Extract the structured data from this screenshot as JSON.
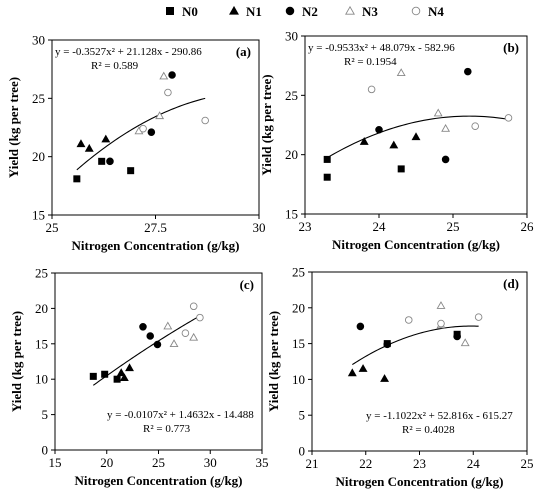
{
  "legend": [
    {
      "label": "N0",
      "marker": "square"
    },
    {
      "label": "N1",
      "marker": "triangle"
    },
    {
      "label": "N2",
      "marker": "circle"
    },
    {
      "label": "N3",
      "marker": "triangle-open"
    },
    {
      "label": "N4",
      "marker": "circle-open"
    }
  ],
  "chart_data": [
    {
      "type": "scatter",
      "panel_label": "(a)",
      "xlabel": "Nitrogen Concentration (g/kg)",
      "ylabel": "Yield (kg per tree)",
      "xlim": [
        25,
        30
      ],
      "ylim": [
        15,
        30
      ],
      "xticks": [
        "25",
        "27.5",
        "30"
      ],
      "xtick_values": [
        25,
        27.5,
        30
      ],
      "yticks": [
        "15",
        "20",
        "25",
        "30"
      ],
      "ytick_values": [
        15,
        20,
        25,
        30
      ],
      "equation": "y = -0.3527x² + 21.128x - 290.86",
      "r2": "R² = 0.589",
      "equation_position": "top-left",
      "fit": {
        "a": -0.3527,
        "b": 21.128,
        "c": -290.86,
        "x_range": [
          25.6,
          28.7
        ]
      },
      "series": [
        {
          "name": "N0",
          "points": [
            [
              25.6,
              18.1
            ],
            [
              26.2,
              19.6
            ],
            [
              26.9,
              18.8
            ]
          ]
        },
        {
          "name": "N1",
          "points": [
            [
              25.7,
              21.1
            ],
            [
              25.9,
              20.7
            ],
            [
              26.3,
              21.5
            ]
          ]
        },
        {
          "name": "N2",
          "points": [
            [
              26.4,
              19.6
            ],
            [
              27.4,
              22.1
            ],
            [
              27.9,
              27.0
            ]
          ]
        },
        {
          "name": "N3",
          "points": [
            [
              27.1,
              22.2
            ],
            [
              27.6,
              23.5
            ],
            [
              27.7,
              26.9
            ]
          ]
        },
        {
          "name": "N4",
          "points": [
            [
              27.2,
              22.4
            ],
            [
              27.8,
              25.5
            ],
            [
              28.7,
              23.1
            ]
          ]
        }
      ]
    },
    {
      "type": "scatter",
      "panel_label": "(b)",
      "xlabel": "Nitrogen Concentration (g/kg)",
      "ylabel": "Yield (kg per tree)",
      "xlim": [
        23,
        26
      ],
      "ylim": [
        15,
        30
      ],
      "xticks": [
        "23",
        "24",
        "25",
        "26"
      ],
      "xtick_values": [
        23,
        24,
        25,
        26
      ],
      "yticks": [
        "15",
        "20",
        "25",
        "30"
      ],
      "ytick_values": [
        15,
        20,
        25,
        30
      ],
      "equation": "y = -0.9533x² + 48.079x - 582.96",
      "r2": "R² = 0.1954",
      "equation_position": "top-left",
      "fit": {
        "a": -0.9533,
        "b": 48.079,
        "c": -582.96,
        "x_range": [
          23.3,
          25.75
        ]
      },
      "series": [
        {
          "name": "N0",
          "points": [
            [
              23.3,
              19.6
            ],
            [
              23.3,
              18.1
            ],
            [
              24.3,
              18.8
            ]
          ]
        },
        {
          "name": "N1",
          "points": [
            [
              23.8,
              21.1
            ],
            [
              24.2,
              20.8
            ],
            [
              24.5,
              21.5
            ]
          ]
        },
        {
          "name": "N2",
          "points": [
            [
              24.0,
              22.1
            ],
            [
              24.9,
              19.6
            ],
            [
              25.2,
              27.0
            ]
          ]
        },
        {
          "name": "N3",
          "points": [
            [
              24.3,
              26.9
            ],
            [
              24.8,
              23.5
            ],
            [
              24.9,
              22.2
            ]
          ]
        },
        {
          "name": "N4",
          "points": [
            [
              23.9,
              25.5
            ],
            [
              25.3,
              22.4
            ],
            [
              25.75,
              23.1
            ]
          ]
        }
      ]
    },
    {
      "type": "scatter",
      "panel_label": "(c)",
      "xlabel": "Nitrogen Concentration (g/kg)",
      "ylabel": "Yield (kg per tree)",
      "xlim": [
        15,
        35
      ],
      "ylim": [
        0,
        25
      ],
      "xticks": [
        "15",
        "20",
        "25",
        "30",
        "35"
      ],
      "xtick_values": [
        15,
        20,
        25,
        30,
        35
      ],
      "yticks": [
        "0",
        "5",
        "10",
        "15",
        "20",
        "25"
      ],
      "ytick_values": [
        0,
        5,
        10,
        15,
        20,
        25
      ],
      "equation": "y = -0.0107x² + 1.4632x - 14.488",
      "r2": "R² = 0.773",
      "equation_position": "bottom-right",
      "fit": {
        "a": -0.0107,
        "b": 1.4632,
        "c": -14.488,
        "x_range": [
          18.7,
          29.0
        ]
      },
      "series": [
        {
          "name": "N0",
          "points": [
            [
              18.7,
              10.4
            ],
            [
              19.8,
              10.7
            ],
            [
              21.0,
              10.0
            ]
          ]
        },
        {
          "name": "N1",
          "points": [
            [
              21.4,
              10.9
            ],
            [
              21.7,
              10.2
            ],
            [
              22.2,
              11.6
            ]
          ]
        },
        {
          "name": "N2",
          "points": [
            [
              23.5,
              17.4
            ],
            [
              24.2,
              16.1
            ],
            [
              24.9,
              14.9
            ]
          ]
        },
        {
          "name": "N3",
          "points": [
            [
              25.9,
              17.5
            ],
            [
              26.5,
              15.0
            ],
            [
              28.4,
              15.9
            ]
          ]
        },
        {
          "name": "N4",
          "points": [
            [
              27.6,
              16.5
            ],
            [
              28.4,
              20.3
            ],
            [
              29.0,
              18.7
            ]
          ]
        }
      ]
    },
    {
      "type": "scatter",
      "panel_label": "(d)",
      "xlabel": "Nitrogen Concentration (g/kg)",
      "ylabel": "Yield (kg per tree)",
      "xlim": [
        21,
        25
      ],
      "ylim": [
        0,
        25
      ],
      "xticks": [
        "21",
        "22",
        "23",
        "24",
        "25"
      ],
      "xtick_values": [
        21,
        22,
        23,
        24,
        25
      ],
      "yticks": [
        "0",
        "5",
        "10",
        "15",
        "20",
        "25"
      ],
      "ytick_values": [
        0,
        5,
        10,
        15,
        20,
        25
      ],
      "equation": "y = -1.1022x² + 52.816x - 615.27",
      "r2": "R² = 0.4028",
      "equation_position": "bottom-right",
      "fit": {
        "a": -1.1022,
        "b": 52.816,
        "c": -615.27,
        "x_range": [
          21.75,
          24.1
        ]
      },
      "series": [
        {
          "name": "N0",
          "points": [
            [
              22.4,
              15.0
            ],
            [
              23.7,
              16.3
            ]
          ]
        },
        {
          "name": "N1",
          "points": [
            [
              21.75,
              10.9
            ],
            [
              21.95,
              11.5
            ],
            [
              22.35,
              10.1
            ]
          ]
        },
        {
          "name": "N2",
          "points": [
            [
              21.9,
              17.4
            ],
            [
              22.4,
              14.9
            ],
            [
              23.7,
              16.0
            ]
          ]
        },
        {
          "name": "N3",
          "points": [
            [
              23.4,
              20.3
            ],
            [
              23.4,
              17.6
            ],
            [
              23.85,
              15.1
            ]
          ]
        },
        {
          "name": "N4",
          "points": [
            [
              22.8,
              18.3
            ],
            [
              23.4,
              17.8
            ],
            [
              24.1,
              18.7
            ]
          ]
        }
      ]
    }
  ]
}
